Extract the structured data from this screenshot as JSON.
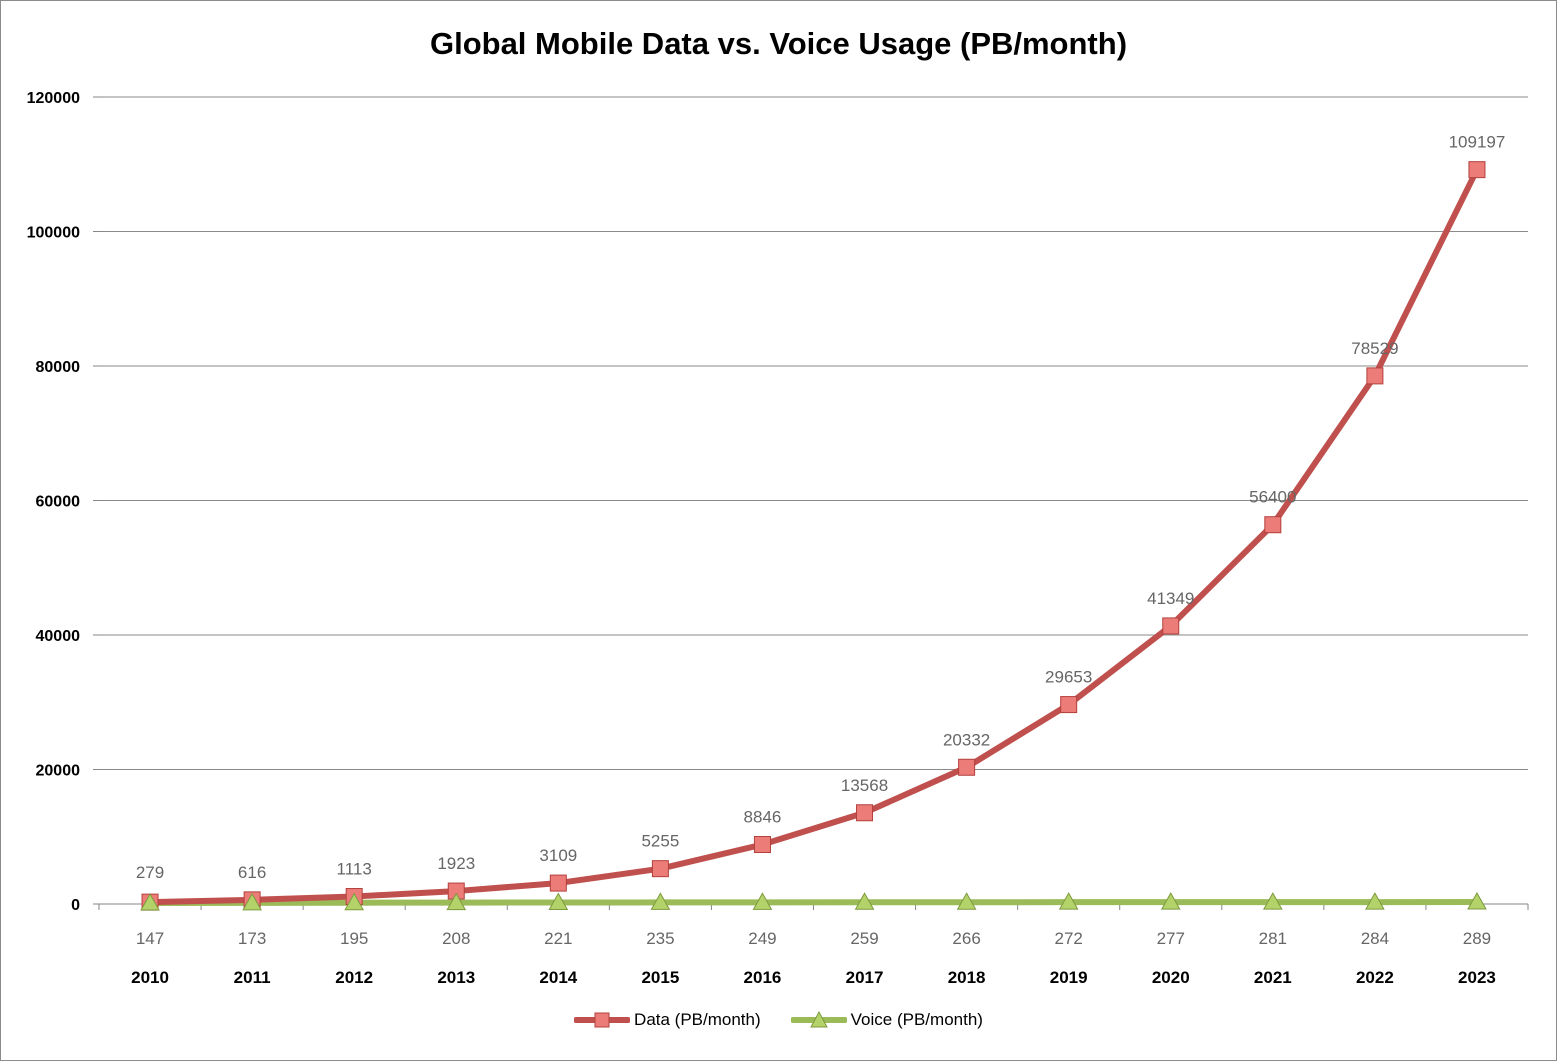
{
  "chart_data": {
    "type": "line",
    "title": "Global Mobile Data vs. Voice Usage (PB/month)",
    "xlabel": "",
    "ylabel": "",
    "categories": [
      "2010",
      "2011",
      "2012",
      "2013",
      "2014",
      "2015",
      "2016",
      "2017",
      "2018",
      "2019",
      "2020",
      "2021",
      "2022",
      "2023"
    ],
    "ylim": [
      0,
      120000
    ],
    "yticks": [
      "0",
      "20000",
      "40000",
      "60000",
      "80000",
      "100000",
      "120000"
    ],
    "grid": true,
    "legend_position": "bottom",
    "series": [
      {
        "name": "Data (PB/month)",
        "color": "#c0504d",
        "marker": "square",
        "values": [
          279,
          616,
          1113,
          1923,
          3109,
          5255,
          8846,
          13568,
          20332,
          29653,
          41349,
          56400,
          78529,
          109197
        ],
        "labels": [
          "279",
          "616",
          "1113",
          "1923",
          "3109",
          "5255",
          "8846",
          "13568",
          "20332",
          "29653",
          "41349",
          "56400",
          "78529",
          "109197"
        ]
      },
      {
        "name": "Voice (PB/month)",
        "color": "#9bbb59",
        "marker": "triangle",
        "values": [
          147,
          173,
          195,
          208,
          221,
          235,
          249,
          259,
          266,
          272,
          277,
          281,
          284,
          289
        ],
        "labels": [
          "147",
          "173",
          "195",
          "208",
          "221",
          "235",
          "249",
          "259",
          "266",
          "272",
          "277",
          "281",
          "284",
          "289"
        ]
      }
    ]
  }
}
